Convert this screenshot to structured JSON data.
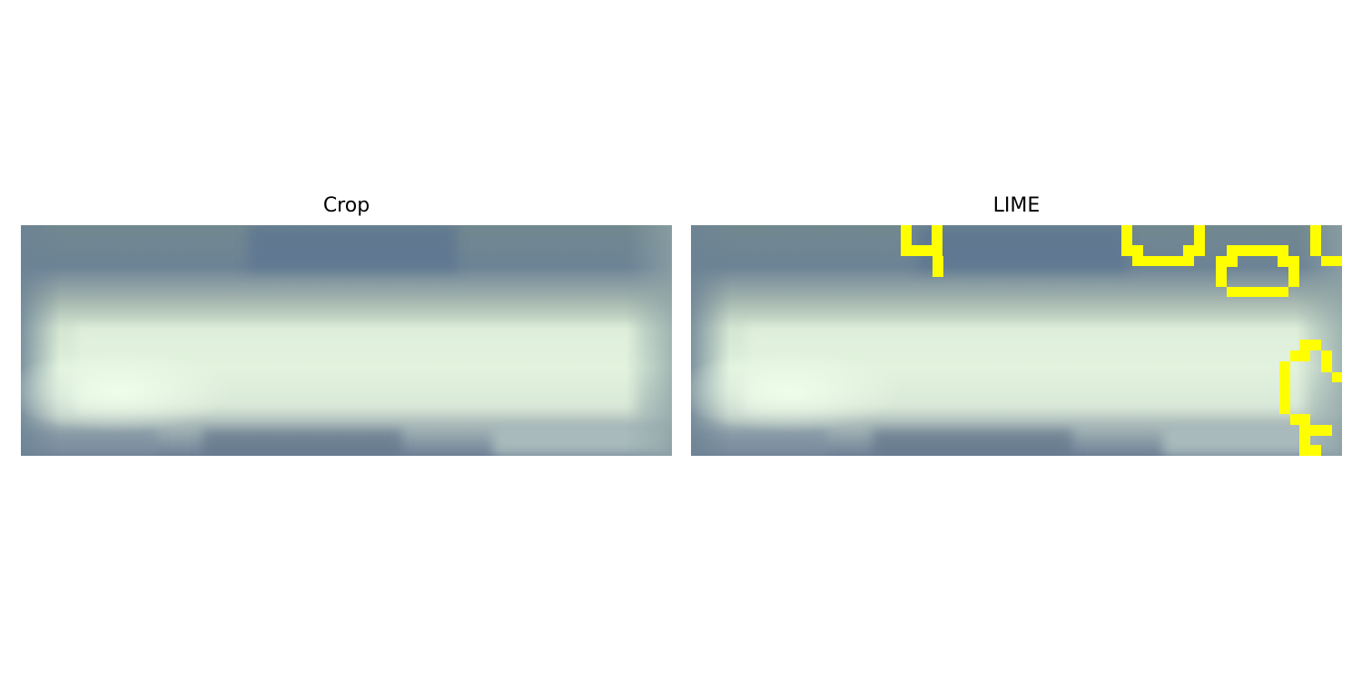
{
  "panels": [
    {
      "title": "Crop"
    },
    {
      "title": "LIME"
    }
  ],
  "colors": {
    "background": "#ffffff",
    "sky_blue": "#5f7891",
    "sky_grey": "#7f939b",
    "text_band": "#dcedd9",
    "text_band_bright": "#eaf8e5",
    "lime_outline": "#ffff00"
  }
}
